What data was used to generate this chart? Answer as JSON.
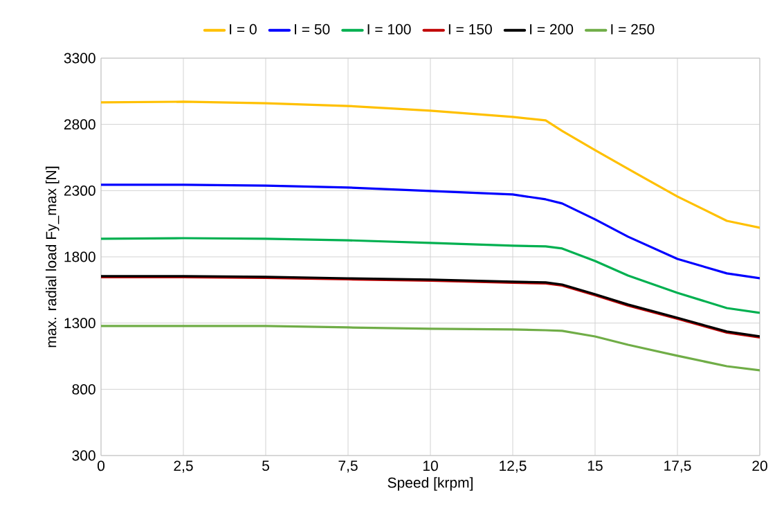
{
  "chart_data": {
    "type": "line",
    "xlabel": "Speed [krpm]",
    "ylabel": "max. radial load Fy_max [N]",
    "x": [
      0,
      2.5,
      5,
      7.5,
      10,
      12.5,
      13.5,
      14,
      15,
      16,
      17.5,
      19,
      20
    ],
    "series": [
      {
        "name": "I = 0",
        "color": "#ffc000",
        "values": [
          2966,
          2971,
          2960,
          2939,
          2903,
          2856,
          2830,
          2751,
          2605,
          2464,
          2255,
          2072,
          2020
        ]
      },
      {
        "name": "I = 50",
        "color": "#0000ff",
        "values": [
          2344,
          2344,
          2338,
          2323,
          2297,
          2271,
          2234,
          2203,
          2083,
          1952,
          1784,
          1675,
          1638
        ]
      },
      {
        "name": "I = 100",
        "color": "#00b050",
        "values": [
          1936,
          1941,
          1936,
          1925,
          1905,
          1884,
          1879,
          1863,
          1769,
          1659,
          1528,
          1413,
          1377
        ]
      },
      {
        "name": "I = 150",
        "color": "#c00000",
        "values": [
          1646,
          1646,
          1641,
          1630,
          1620,
          1604,
          1599,
          1583,
          1510,
          1432,
          1332,
          1228,
          1191
        ]
      },
      {
        "name": "I = 200",
        "color": "#000000",
        "values": [
          1654,
          1654,
          1649,
          1638,
          1628,
          1612,
          1607,
          1591,
          1518,
          1440,
          1340,
          1236,
          1199
        ]
      },
      {
        "name": "I = 250",
        "color": "#70ad47",
        "values": [
          1278,
          1278,
          1278,
          1267,
          1257,
          1252,
          1246,
          1241,
          1199,
          1136,
          1053,
          974,
          943
        ]
      }
    ],
    "xlim": [
      0,
      20
    ],
    "ylim": [
      300,
      3300
    ],
    "xticks": [
      0,
      {
        "value": 2.5,
        "label": "2,5"
      },
      5,
      {
        "value": 7.5,
        "label": "7,5"
      },
      10,
      {
        "value": 12.5,
        "label": "12,5"
      },
      15,
      {
        "value": 17.5,
        "label": "17,5"
      },
      20
    ],
    "yticks": [
      300,
      800,
      1300,
      1800,
      2300,
      2800,
      3300
    ],
    "grid": true,
    "legend": "top",
    "marker": "none",
    "line_style": "solid"
  }
}
